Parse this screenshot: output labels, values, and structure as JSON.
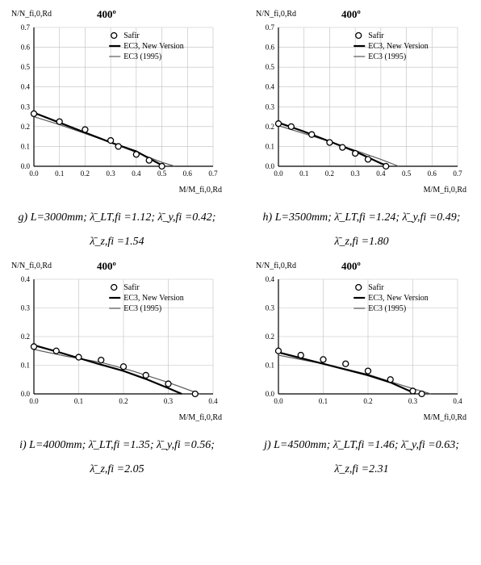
{
  "temperature_title": "400º",
  "y_axis_label": "N/N_fi,0,Rd",
  "x_axis_label": "M/M_fi,0,Rd",
  "legend": {
    "safir": "Safir",
    "new": "EC3, New Version",
    "old": "EC3 (1995)"
  },
  "colors": {
    "axis": "#000000",
    "grid": "#bfbfbf",
    "marker_stroke": "#000000",
    "marker_fill": "#ffffff",
    "line_new": "#000000",
    "line_old": "#5a5a5a",
    "text": "#000000",
    "background": "#ffffff"
  },
  "style": {
    "tick_fontsize": 9,
    "line_new_width": 2.2,
    "line_old_width": 1.2,
    "marker_radius": 3.5,
    "axis_width": 1.2,
    "grid_width": 0.6
  },
  "panels": [
    {
      "id": "g",
      "xlim": [
        0,
        0.7
      ],
      "ylim": [
        0,
        0.7
      ],
      "xtick_step": 0.1,
      "ytick_step": 0.1,
      "safir": [
        [
          0.0,
          0.265
        ],
        [
          0.1,
          0.225
        ],
        [
          0.2,
          0.185
        ],
        [
          0.3,
          0.13
        ],
        [
          0.33,
          0.1
        ],
        [
          0.4,
          0.06
        ],
        [
          0.45,
          0.03
        ],
        [
          0.5,
          0.0
        ]
      ],
      "new": [
        [
          0.0,
          0.27
        ],
        [
          0.1,
          0.22
        ],
        [
          0.2,
          0.17
        ],
        [
          0.3,
          0.12
        ],
        [
          0.4,
          0.075
        ],
        [
          0.5,
          0.005
        ],
        [
          0.51,
          0.0
        ]
      ],
      "old": [
        [
          0.0,
          0.25
        ],
        [
          0.1,
          0.21
        ],
        [
          0.2,
          0.165
        ],
        [
          0.3,
          0.12
        ],
        [
          0.4,
          0.07
        ],
        [
          0.5,
          0.02
        ],
        [
          0.55,
          0.0
        ]
      ],
      "caption1": "g) L=3000mm;  λ̄_LT,fi =1.12;  λ̄_y,fi =0.42;",
      "caption2": "λ̄_z,fi =1.54"
    },
    {
      "id": "h",
      "xlim": [
        0,
        0.7
      ],
      "ylim": [
        0,
        0.7
      ],
      "xtick_step": 0.1,
      "ytick_step": 0.1,
      "safir": [
        [
          0.0,
          0.215
        ],
        [
          0.05,
          0.2
        ],
        [
          0.13,
          0.16
        ],
        [
          0.2,
          0.12
        ],
        [
          0.25,
          0.095
        ],
        [
          0.3,
          0.065
        ],
        [
          0.35,
          0.035
        ],
        [
          0.42,
          0.0
        ]
      ],
      "new": [
        [
          0.0,
          0.22
        ],
        [
          0.1,
          0.175
        ],
        [
          0.2,
          0.125
        ],
        [
          0.3,
          0.075
        ],
        [
          0.4,
          0.015
        ],
        [
          0.43,
          0.0
        ]
      ],
      "old": [
        [
          0.0,
          0.205
        ],
        [
          0.1,
          0.165
        ],
        [
          0.2,
          0.125
        ],
        [
          0.3,
          0.08
        ],
        [
          0.4,
          0.035
        ],
        [
          0.47,
          0.0
        ]
      ],
      "caption1": "h) L=3500mm;  λ̄_LT,fi =1.24;  λ̄_y,fi =0.49;",
      "caption2": "λ̄_z,fi =1.80"
    },
    {
      "id": "i",
      "xlim": [
        0,
        0.4
      ],
      "ylim": [
        0,
        0.4
      ],
      "xtick_step": 0.1,
      "ytick_step": 0.1,
      "safir": [
        [
          0.0,
          0.165
        ],
        [
          0.05,
          0.15
        ],
        [
          0.1,
          0.128
        ],
        [
          0.15,
          0.118
        ],
        [
          0.2,
          0.095
        ],
        [
          0.25,
          0.065
        ],
        [
          0.3,
          0.035
        ],
        [
          0.36,
          0.0
        ]
      ],
      "new": [
        [
          0.0,
          0.17
        ],
        [
          0.05,
          0.148
        ],
        [
          0.1,
          0.125
        ],
        [
          0.15,
          0.102
        ],
        [
          0.2,
          0.08
        ],
        [
          0.25,
          0.052
        ],
        [
          0.3,
          0.02
        ],
        [
          0.33,
          0.0
        ]
      ],
      "old": [
        [
          0.0,
          0.155
        ],
        [
          0.07,
          0.132
        ],
        [
          0.15,
          0.11
        ],
        [
          0.22,
          0.08
        ],
        [
          0.3,
          0.04
        ],
        [
          0.37,
          0.0
        ]
      ],
      "caption1": "i) L=4000mm;  λ̄_LT,fi =1.35;  λ̄_y,fi =0.56;",
      "caption2": "λ̄_z,fi =2.05"
    },
    {
      "id": "j",
      "xlim": [
        0,
        0.4
      ],
      "ylim": [
        0,
        0.4
      ],
      "xtick_step": 0.1,
      "ytick_step": 0.1,
      "safir": [
        [
          0.0,
          0.15
        ],
        [
          0.05,
          0.135
        ],
        [
          0.1,
          0.12
        ],
        [
          0.15,
          0.105
        ],
        [
          0.2,
          0.08
        ],
        [
          0.25,
          0.05
        ],
        [
          0.3,
          0.01
        ],
        [
          0.32,
          0.0
        ]
      ],
      "new": [
        [
          0.0,
          0.145
        ],
        [
          0.05,
          0.125
        ],
        [
          0.1,
          0.105
        ],
        [
          0.15,
          0.085
        ],
        [
          0.2,
          0.065
        ],
        [
          0.25,
          0.04
        ],
        [
          0.3,
          0.005
        ],
        [
          0.305,
          0.0
        ]
      ],
      "old": [
        [
          0.0,
          0.135
        ],
        [
          0.05,
          0.12
        ],
        [
          0.12,
          0.098
        ],
        [
          0.2,
          0.068
        ],
        [
          0.28,
          0.028
        ],
        [
          0.34,
          0.0
        ]
      ],
      "caption1": "j) L=4500mm;  λ̄_LT,fi =1.46;  λ̄_y,fi =0.63;",
      "caption2": "λ̄_z,fi =2.31"
    }
  ]
}
